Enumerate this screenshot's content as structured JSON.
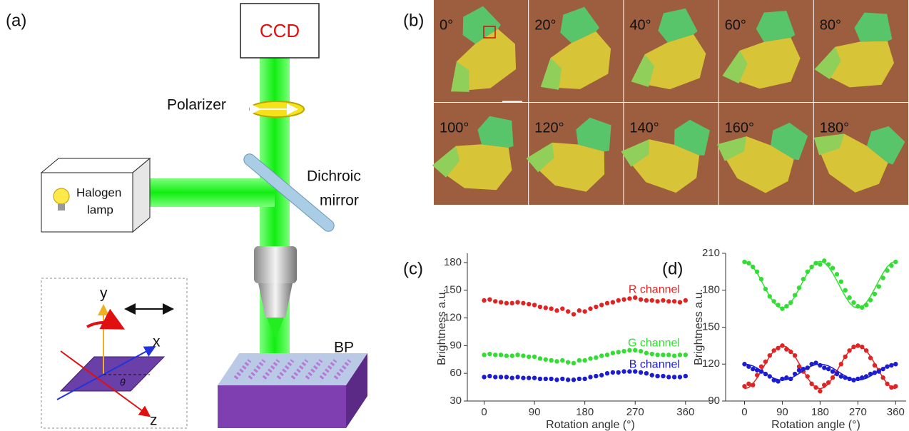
{
  "panels": {
    "a": "(a)",
    "b": "(b)",
    "c": "(c)",
    "d": "(d)"
  },
  "diagram": {
    "ccd": "CCD",
    "polarizer": "Polarizer",
    "mirror": [
      "Dichroic",
      "mirror"
    ],
    "lamp": [
      "Halogen",
      "lamp"
    ],
    "sample": "BP",
    "axes": {
      "y": "y",
      "x": "x",
      "z": "z",
      "angle": "θ"
    }
  },
  "micrographs": {
    "angles": [
      "0°",
      "20°",
      "40°",
      "60°",
      "80°",
      "100°",
      "120°",
      "140°",
      "160°",
      "180°"
    ]
  },
  "chart_data": [
    {
      "type": "scatter",
      "xlabel": "Rotation angle (°)",
      "ylabel": "Brightness a.u.",
      "x": [
        0,
        10,
        20,
        30,
        40,
        50,
        60,
        70,
        80,
        90,
        100,
        110,
        120,
        130,
        140,
        150,
        160,
        170,
        180,
        190,
        200,
        210,
        220,
        230,
        240,
        250,
        260,
        270,
        280,
        290,
        300,
        310,
        320,
        330,
        340,
        350,
        360
      ],
      "xlim": [
        -30,
        410
      ],
      "xticks": [
        0,
        90,
        180,
        270,
        360
      ],
      "ylim": [
        30,
        190
      ],
      "yticks": [
        30,
        60,
        90,
        120,
        150,
        180
      ],
      "series": [
        {
          "name": "R channel",
          "color": "#e02424",
          "values": [
            139,
            140,
            138,
            137,
            136,
            136,
            137,
            136,
            135,
            134,
            132,
            131,
            130,
            128,
            130,
            127,
            124,
            128,
            127,
            130,
            132,
            134,
            136,
            137,
            139,
            140,
            141,
            142,
            140,
            139,
            139,
            138,
            139,
            138,
            138,
            137,
            139
          ]
        },
        {
          "name": "G channel",
          "color": "#33dd33",
          "values": [
            80,
            81,
            80,
            80,
            79,
            79,
            80,
            79,
            78,
            78,
            76,
            75,
            74,
            73,
            74,
            72,
            71,
            74,
            74,
            76,
            77,
            79,
            80,
            82,
            83,
            84,
            85,
            85,
            84,
            82,
            81,
            80,
            80,
            80,
            79,
            80,
            80
          ]
        },
        {
          "name": "B channel",
          "color": "#1c1cd0",
          "values": [
            56,
            57,
            56,
            56,
            56,
            55,
            56,
            55,
            55,
            55,
            54,
            54,
            54,
            53,
            54,
            53,
            53,
            54,
            54,
            56,
            57,
            58,
            60,
            61,
            61,
            62,
            62,
            62,
            61,
            60,
            58,
            57,
            57,
            56,
            56,
            56,
            57
          ]
        }
      ]
    },
    {
      "type": "scatter",
      "xlabel": "Rotation angle (°)",
      "ylabel": "Brightness a.u.",
      "x": [
        0,
        10,
        20,
        30,
        40,
        50,
        60,
        70,
        80,
        90,
        100,
        110,
        120,
        130,
        140,
        150,
        160,
        170,
        180,
        190,
        200,
        210,
        220,
        230,
        240,
        250,
        260,
        270,
        280,
        290,
        300,
        310,
        320,
        330,
        340,
        350,
        360
      ],
      "xlim": [
        -45,
        385
      ],
      "xticks": [
        0,
        90,
        180,
        270,
        360
      ],
      "ylim": [
        90,
        210
      ],
      "yticks": [
        90,
        120,
        150,
        180,
        210
      ],
      "series": [
        {
          "color": "#33dd33",
          "values": [
            203,
            202,
            199,
            195,
            189,
            181,
            175,
            171,
            168,
            165,
            167,
            170,
            176,
            182,
            189,
            195,
            199,
            202,
            201,
            204,
            201,
            198,
            193,
            187,
            180,
            174,
            170,
            167,
            166,
            168,
            172,
            177,
            183,
            190,
            196,
            200,
            203
          ],
          "fit": [
            203.5,
            202.4,
            199.1,
            194,
            187.8,
            181.2,
            175,
            169.9,
            166.6,
            165.5,
            166.6,
            169.9,
            175,
            181.2,
            187.8,
            194,
            199.1,
            202.4,
            203.5,
            202.4,
            199.1,
            194,
            187.8,
            181.2,
            175,
            169.9,
            166.6,
            165.5,
            166.6,
            169.9,
            175,
            181.2,
            187.8,
            194,
            199.1,
            202.4,
            203.5
          ]
        },
        {
          "color": "#e02424",
          "values": [
            102,
            104,
            103,
            111,
            118,
            122,
            127,
            131,
            133,
            135,
            132,
            130,
            127,
            118,
            114,
            110,
            104,
            101,
            98,
            103,
            105,
            109,
            113,
            120,
            126,
            131,
            134,
            135,
            134,
            131,
            125,
            119,
            115,
            109,
            104,
            101,
            102
          ],
          "fit": [
            100,
            101,
            104.1,
            108.8,
            114.5,
            120.5,
            126.3,
            130.9,
            134,
            135,
            134,
            130.9,
            126.3,
            120.5,
            114.5,
            108.8,
            104.1,
            101,
            100,
            101,
            104.1,
            108.8,
            114.5,
            120.5,
            126.3,
            130.9,
            134,
            135,
            134,
            130.9,
            126.3,
            120.5,
            114.5,
            108.8,
            104.1,
            101,
            100
          ]
        },
        {
          "color": "#1c1cd0",
          "values": [
            120,
            118,
            116,
            115,
            114,
            112,
            110,
            107,
            106,
            108,
            109,
            108,
            112,
            115,
            116,
            117,
            120,
            121,
            119,
            117,
            116,
            114,
            112,
            110,
            109,
            108,
            107,
            108,
            109,
            110,
            112,
            113,
            114,
            116,
            118,
            119,
            120
          ],
          "fit": [
            120,
            119.6,
            118.5,
            116.8,
            114.6,
            112.4,
            110.3,
            108.5,
            107.4,
            107,
            107.4,
            108.5,
            110.3,
            112.4,
            114.6,
            116.8,
            118.5,
            119.6,
            120,
            119.6,
            118.5,
            116.8,
            114.6,
            112.4,
            110.3,
            108.5,
            107.4,
            107,
            107.4,
            108.5,
            110.3,
            112.4,
            114.6,
            116.8,
            118.5,
            119.6,
            120
          ]
        }
      ]
    }
  ]
}
